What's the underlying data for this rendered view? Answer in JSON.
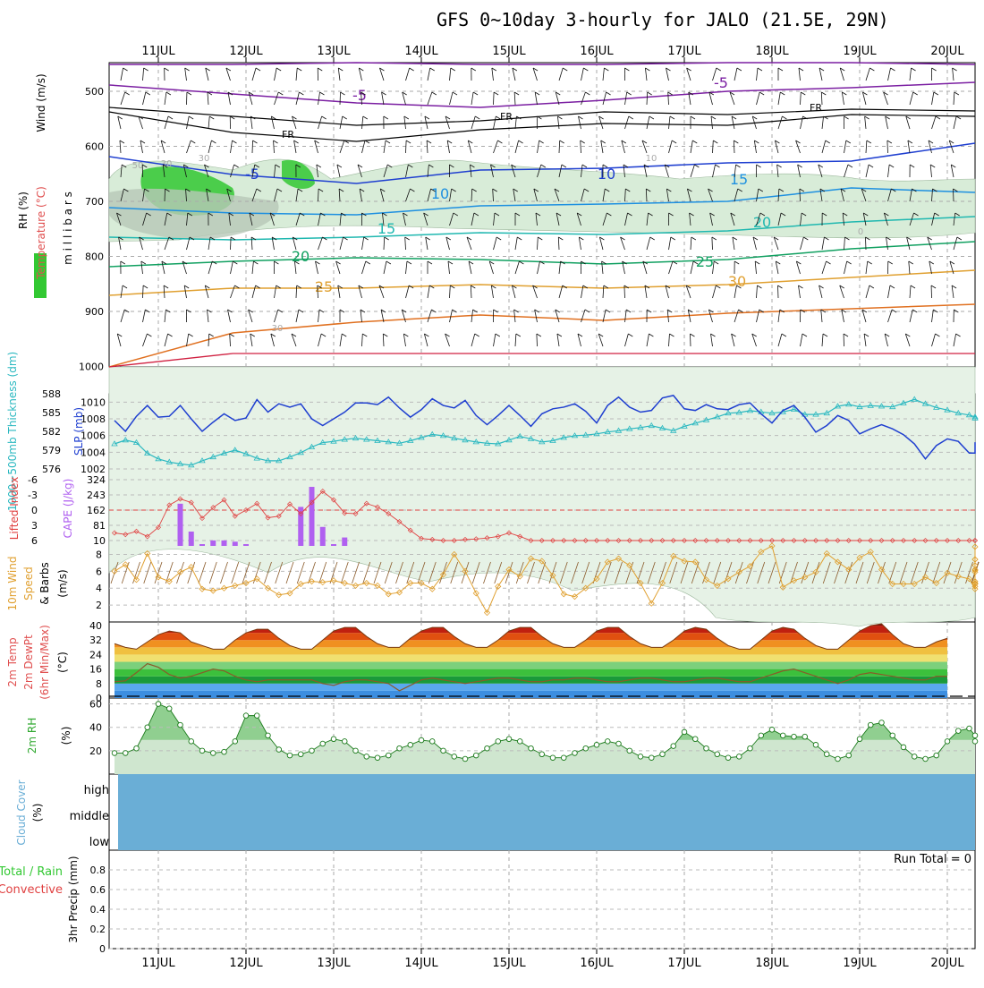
{
  "title": "GFS 0~10day 3-hourly for JALO (21.5E, 29N)",
  "dates": [
    "11JUL",
    "12JUL",
    "13JUL",
    "14JUL",
    "15JUL",
    "16JUL",
    "17JUL",
    "18JUL",
    "19JUL",
    "20JUL"
  ],
  "colors": {
    "rh": "#32c832",
    "rh_light": "#e6f2e6",
    "temp_label": "#e05050",
    "slp": "#1f3fd0",
    "thickness": "#2ab8c0",
    "cape": "#b060f0",
    "li": "#e04040",
    "wind10": "#e0a030",
    "dew": "#8a5a2a",
    "rh2m": "#2fa82f",
    "cloud": "#6aaed6",
    "precip_total": "#32c832",
    "precip_conv": "#e04040"
  },
  "panels": {
    "upper": {
      "ylabel": [
        "RH (%)",
        "Temperature (°C)",
        "Wind (m/s)"
      ],
      "ylabel2": "m i l l i b a r s",
      "y_ticks": [
        "500",
        "600",
        "700",
        "800",
        "900",
        "1000"
      ],
      "isotherm_labels": [
        "-5",
        "FR",
        "FR",
        "FR",
        "-5",
        "-5",
        "10",
        "10",
        "15",
        "15",
        "20",
        "20",
        "25",
        "25",
        "30",
        "30",
        "30",
        "10",
        "0",
        "50",
        "30"
      ]
    },
    "slp": {
      "ylabel_left": "1000~500mb Thickness (dm)",
      "ylabel_right": "SLP (mb)",
      "left_ticks": [
        "588",
        "585",
        "582",
        "579",
        "576"
      ],
      "right_ticks": [
        "1010",
        "1008",
        "1006",
        "1004",
        "1002"
      ]
    },
    "cape": {
      "ylabel_left": "Lifted Index",
      "ylabel_right": "CAPE (J/kg)",
      "li_ticks": [
        "-6",
        "-3",
        "0",
        "3",
        "6"
      ],
      "cape_ticks": [
        "324",
        "243",
        "162",
        "81",
        "10"
      ]
    },
    "wind": {
      "ylabel": [
        "10m Wind",
        "Speed",
        "& Barbs",
        "(m/s)"
      ],
      "ticks": [
        "8",
        "6",
        "4",
        "2"
      ]
    },
    "temp": {
      "ylabel": [
        "2m Temp",
        "2m DewPt",
        "(6hr Min/Max)",
        "(°C)"
      ],
      "ticks": [
        "40",
        "32",
        "24",
        "16",
        "8",
        "0"
      ]
    },
    "rh": {
      "ylabel": [
        "2m RH",
        "(%)"
      ],
      "ticks": [
        "60",
        "40",
        "20"
      ]
    },
    "cloud": {
      "ylabel": [
        "Cloud Cover",
        "(%)"
      ],
      "levels": [
        "high",
        "middle",
        "low"
      ]
    },
    "precip": {
      "ylabel_a": "Total / Rain",
      "ylabel_b": "Convective",
      "ylabel_c": "3hr Precip (mm)",
      "ticks": [
        "0.8",
        "0.6",
        "0.4",
        "0.2",
        "0"
      ],
      "run_total": "Run Total = 0"
    }
  },
  "chart_data": [
    {
      "type": "line",
      "title": "SLP (mb) and 1000~500mb Thickness (dm)",
      "x_start": "10JUL 12Z",
      "x_step_hours": 3,
      "series": [
        {
          "name": "SLP (mb)",
          "axis": "right",
          "ylim": [
            1002,
            1011
          ],
          "values": [
            1007.8,
            1006.5,
            1008.3,
            1009.6,
            1008.2,
            1008.3,
            1009.6,
            1008,
            1006.5,
            1007.6,
            1008.6,
            1007.8,
            1008.1,
            1010.3,
            1008.8,
            1009.8,
            1009.4,
            1009.8,
            1008,
            1007.2,
            1008,
            1008.8,
            1009.9,
            1009.9,
            1009.7,
            1010.6,
            1009.3,
            1008.2,
            1009.1,
            1010.4,
            1009.6,
            1009.3,
            1010.2,
            1008.4,
            1007.3,
            1008.4,
            1009.6,
            1008.4,
            1007.1,
            1008.6,
            1009.2,
            1009.4,
            1009.8,
            1008.9,
            1007.5,
            1009.6,
            1010.6,
            1009.4,
            1008.8,
            1009,
            1010.5,
            1010.8,
            1009.2,
            1009,
            1009.7,
            1009.2,
            1009.1,
            1009.7,
            1009.9,
            1008.6,
            1007.5,
            1009,
            1009.6,
            1008.2,
            1006.4,
            1007.2,
            1008.4,
            1007.8,
            1006.2,
            1006.8,
            1007.3,
            1006.8,
            1006.1,
            1005,
            1003.2,
            1004.8,
            1005.6,
            1005.3,
            1003.9,
            1003.9,
            1005.2
          ]
        },
        {
          "name": "1000~500mb Thickness (dm)",
          "axis": "left",
          "ylim": [
            576,
            588
          ],
          "values": [
            580,
            580.6,
            580.2,
            578.5,
            577.6,
            577.1,
            576.8,
            576.6,
            577.3,
            577.9,
            578.5,
            579,
            578.4,
            577.7,
            577.3,
            577.3,
            577.9,
            578.6,
            579.5,
            580.2,
            580.4,
            580.7,
            580.9,
            580.7,
            580.5,
            580.3,
            580.1,
            580.5,
            581,
            581.5,
            581.3,
            580.9,
            580.6,
            580.3,
            580.1,
            580,
            580.6,
            581.2,
            580.8,
            580.3,
            580.5,
            581,
            581.3,
            581.4,
            581.6,
            581.9,
            582.1,
            582.4,
            582.6,
            582.9,
            582.5,
            582.1,
            582.8,
            583.3,
            583.8,
            584.3,
            584.9,
            585,
            585.3,
            585.1,
            584.9,
            585.1,
            585.5,
            584.7,
            584.7,
            584.9,
            586,
            586.3,
            585.9,
            586.1,
            586,
            585.9,
            586.5,
            587.1,
            586.4,
            585.8,
            585.4,
            584.9,
            584.6,
            584.3,
            584.1
          ]
        }
      ]
    },
    {
      "type": "bar",
      "title": "Lifted Index and CAPE (J/kg)",
      "x_start": "10JUL 12Z",
      "x_step_hours": 3,
      "series": [
        {
          "name": "CAPE (J/kg)",
          "axis": "right",
          "ylim": [
            10,
            324
          ],
          "values": [
            0,
            0,
            0,
            0,
            0,
            0,
            210,
            78,
            14,
            36,
            36,
            30,
            10,
            0,
            0,
            0,
            0,
            195,
            290,
            100,
            10,
            50
          ]
        },
        {
          "name": "Lifted Index",
          "axis": "left",
          "type": "line",
          "ylim": [
            6,
            -6
          ],
          "values": [
            4.5,
            4.8,
            4.2,
            5.2,
            3.4,
            -1,
            -2.2,
            -1.5,
            1.6,
            -0.5,
            -2,
            1.2,
            0,
            -1.3,
            1.5,
            1.2,
            -1.2,
            0.7,
            -1.5,
            -3.7,
            -2,
            0.6,
            0.7,
            -1.3,
            -0.6,
            0.7,
            2.3,
            4,
            5.6,
            5.8,
            6,
            6,
            5.8,
            5.7,
            5.5,
            5.2,
            4.5,
            5.2,
            6,
            6,
            6,
            6,
            6,
            6,
            6,
            6,
            6,
            6,
            6,
            6,
            6,
            6,
            6,
            6,
            6,
            6,
            6,
            6,
            6,
            6,
            6,
            6,
            6,
            6,
            6,
            6,
            6,
            6,
            6,
            6,
            6,
            6,
            6,
            6,
            6,
            6,
            6,
            6,
            6,
            6,
            6
          ]
        }
      ]
    },
    {
      "type": "line",
      "title": "10m Wind Speed (m/s)",
      "x_start": "10JUL 12Z",
      "x_step_hours": 3,
      "ylim": [
        0,
        9
      ],
      "series": [
        {
          "name": "10m Wind Speed (m/s)",
          "values": [
            6,
            6.8,
            5,
            8.1,
            5.3,
            4.8,
            5.9,
            6.5,
            3.9,
            3.7,
            4,
            4.3,
            4.6,
            5.1,
            4,
            3.2,
            3.4,
            4.5,
            4.8,
            4.7,
            4.9,
            4.6,
            4.3,
            4.6,
            4.3,
            3.3,
            3.5,
            4.6,
            4.6,
            3.9,
            5.6,
            8,
            6,
            3.4,
            1.1,
            4.2,
            6.2,
            5.4,
            7.5,
            7.2,
            5.5,
            3.3,
            3,
            4,
            5.1,
            7.1,
            7.5,
            6.7,
            4.6,
            2.2,
            4.6,
            7.8,
            7.2,
            7.1,
            5,
            4.3,
            5.1,
            5.9,
            6.6,
            8.3,
            9.2,
            4.1,
            4.9,
            5.3,
            5.9,
            8.1,
            7.1,
            6.2,
            7.6,
            8.3,
            6.2,
            4.5,
            4.5,
            4.5,
            5.3,
            4.6,
            5.8,
            5.4,
            5.1,
            3.9,
            4.6,
            7.4,
            8.9,
            7.4,
            4.5,
            5.9,
            4.8,
            6.2,
            6.1,
            6.7,
            4.5,
            4.2
          ]
        }
      ]
    },
    {
      "type": "area",
      "title": "2m Temp / 2m DewPt (°C)",
      "x_start": "10JUL 12Z",
      "x_step_hours": 3,
      "ylim": [
        0,
        42
      ],
      "series": [
        {
          "name": "2m Temp (°C)",
          "values": [
            30,
            28,
            27,
            31,
            35,
            37,
            36,
            31,
            29,
            27,
            27,
            32,
            36,
            38,
            38,
            33,
            29,
            27,
            27,
            32,
            37,
            39,
            39,
            34,
            30,
            28,
            28,
            33,
            37,
            39,
            39,
            34,
            30,
            28,
            28,
            32,
            37,
            39,
            39,
            34,
            30,
            28,
            28,
            32,
            37,
            39,
            39,
            34,
            30,
            28,
            28,
            32,
            37,
            39,
            38,
            33,
            29,
            27,
            27,
            32,
            37,
            39,
            38,
            33,
            29,
            27,
            27,
            32,
            37,
            40,
            41,
            35,
            30,
            28,
            28,
            31,
            33
          ]
        },
        {
          "name": "2m DewPt (°C)",
          "values": [
            9,
            9.5,
            14,
            19,
            17,
            13,
            11,
            12,
            14,
            16,
            15,
            12,
            10,
            9,
            10,
            10,
            10,
            10,
            10,
            8,
            7,
            9,
            10,
            10,
            9,
            8,
            4,
            7,
            10,
            11,
            10,
            9,
            8,
            9,
            10,
            11,
            11,
            10,
            9,
            9,
            10,
            10,
            11,
            11,
            10,
            9,
            9,
            10,
            11,
            11,
            10,
            9,
            9,
            10,
            11,
            11,
            10,
            9,
            9,
            11,
            13,
            15,
            16,
            14,
            12,
            10,
            8,
            10,
            13,
            14,
            13,
            12,
            11,
            10,
            10,
            12,
            12
          ]
        }
      ]
    },
    {
      "type": "area",
      "title": "2m RH (%)",
      "x_start": "10JUL 12Z",
      "x_step_hours": 3,
      "ylim": [
        0,
        65
      ],
      "series": [
        {
          "name": "2m RH (%)",
          "values": [
            18,
            18,
            22,
            40,
            60,
            56,
            42,
            28,
            20,
            18,
            19,
            28,
            50,
            50,
            33,
            21,
            16,
            17,
            20,
            26,
            30,
            28,
            20,
            15,
            14,
            16,
            22,
            25,
            29,
            28,
            20,
            15,
            13,
            16,
            22,
            28,
            30,
            28,
            22,
            17,
            14,
            14,
            18,
            22,
            25,
            28,
            26,
            20,
            15,
            14,
            17,
            24,
            36,
            30,
            22,
            17,
            14,
            15,
            22,
            33,
            38,
            33,
            32,
            32,
            25,
            17,
            13,
            16,
            30,
            42,
            44,
            33,
            23,
            15,
            13,
            16,
            28,
            37,
            39,
            33,
            28
          ]
        }
      ]
    },
    {
      "type": "bar",
      "title": "Cloud Cover (%)",
      "categories": [
        "high",
        "middle",
        "low"
      ],
      "values": [
        100,
        100,
        100
      ]
    },
    {
      "type": "bar",
      "title": "3hr Precip (mm)",
      "ylim": [
        0,
        1
      ],
      "values": [],
      "annotation": "Run Total = 0"
    }
  ]
}
